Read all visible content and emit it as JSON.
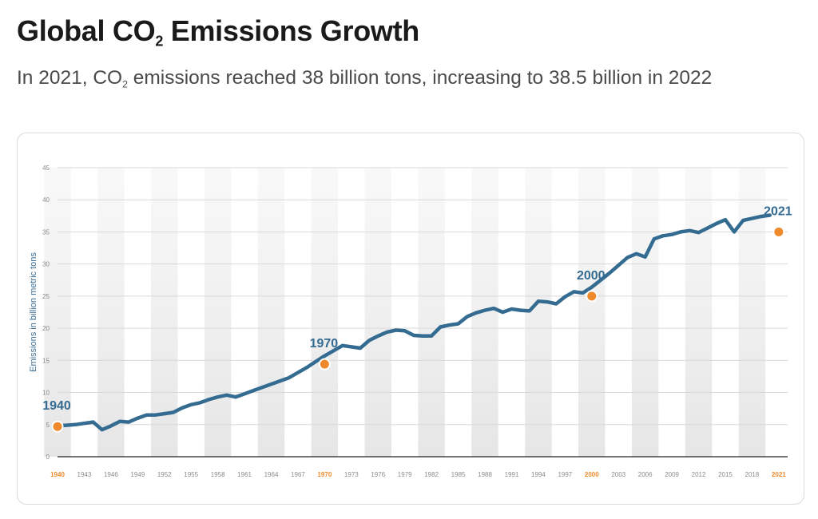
{
  "header": {
    "title_before": "Global CO",
    "title_sub": "2",
    "title_after": " Emissions Growth",
    "subtitle_before": "In 2021, CO",
    "subtitle_sub": "2",
    "subtitle_after": " emissions reached 38 billion tons, increasing to 38.5 billion in 2022"
  },
  "colors": {
    "line": "#346b91",
    "marker": "#ee8a2c",
    "highlight_tick": "#ee8a2c",
    "band": "#e6e6e6",
    "axis_text": "#8a8a8a",
    "ylabel": "#3c6e95"
  },
  "chart_data": {
    "type": "line",
    "title": "",
    "xlabel": "",
    "ylabel": "Emissions in billion metric tons",
    "xlim": [
      1940,
      2022
    ],
    "ylim": [
      0,
      45
    ],
    "yticks": [
      0,
      5,
      10,
      15,
      20,
      25,
      30,
      35,
      40,
      45
    ],
    "xtick_labels": [
      "1940",
      "1943",
      "1946",
      "1949",
      "1952",
      "1955",
      "1958",
      "1961",
      "1964",
      "1967",
      "1970",
      "1973",
      "1976",
      "1979",
      "1982",
      "1985",
      "1988",
      "1991",
      "1994",
      "1997",
      "2000",
      "2003",
      "2006",
      "2009",
      "2012",
      "2015",
      "2018",
      "2021"
    ],
    "highlight_ticks": [
      "1940",
      "1970",
      "2000",
      "2021"
    ],
    "grid": "horizontal",
    "series": [
      {
        "x": [
          1940,
          1941,
          1942,
          1943,
          1944,
          1945,
          1946,
          1947,
          1948,
          1949,
          1950,
          1951,
          1952,
          1953,
          1954,
          1955,
          1956,
          1957,
          1958,
          1959,
          1960,
          1961,
          1962,
          1963,
          1964,
          1965,
          1966,
          1967,
          1968,
          1969,
          1970,
          1971,
          1972,
          1973,
          1974,
          1975,
          1976,
          1977,
          1978,
          1979,
          1980,
          1981,
          1982,
          1983,
          1984,
          1985,
          1986,
          1987,
          1988,
          1989,
          1990,
          1991,
          1992,
          1993,
          1994,
          1995,
          1996,
          1997,
          1998,
          1999,
          2000,
          2001,
          2002,
          2003,
          2004,
          2005,
          2006,
          2007,
          2008,
          2009,
          2010,
          2011,
          2012,
          2013,
          2014,
          2015,
          2016,
          2017,
          2018,
          2019,
          2020,
          2021,
          2022
        ],
        "values": [
          4.8,
          4.9,
          5.0,
          5.2,
          5.4,
          4.2,
          4.8,
          5.5,
          5.4,
          6.0,
          6.5,
          6.5,
          6.7,
          6.9,
          7.6,
          8.1,
          8.4,
          8.9,
          9.3,
          9.6,
          9.3,
          9.8,
          10.3,
          10.8,
          11.3,
          11.8,
          12.3,
          13.1,
          13.9,
          14.8,
          15.7,
          16.5,
          17.3,
          17.1,
          16.9,
          18.1,
          18.8,
          19.4,
          19.7,
          19.6,
          18.9,
          18.8,
          18.8,
          20.2,
          20.5,
          20.7,
          21.8,
          22.4,
          22.8,
          23.1,
          22.5,
          23.0,
          22.8,
          22.7,
          24.2,
          24.1,
          23.8,
          24.9,
          25.7,
          25.5,
          26.4,
          27.5,
          28.6,
          29.8,
          31.0,
          31.6,
          31.1,
          33.9,
          34.4,
          34.6,
          35.0,
          35.2,
          34.9,
          35.6,
          36.3,
          36.9,
          35.0,
          36.8,
          37.1,
          37.4,
          37.6,
          null,
          null
        ]
      }
    ],
    "annotations": [
      {
        "x": 1940,
        "y": 4.7,
        "text": "1940"
      },
      {
        "x": 1970,
        "y": 14.4,
        "text": "1970"
      },
      {
        "x": 2000,
        "y": 25.0,
        "text": "2000"
      },
      {
        "x": 2021,
        "y": 35.0,
        "text": "2021"
      }
    ]
  }
}
